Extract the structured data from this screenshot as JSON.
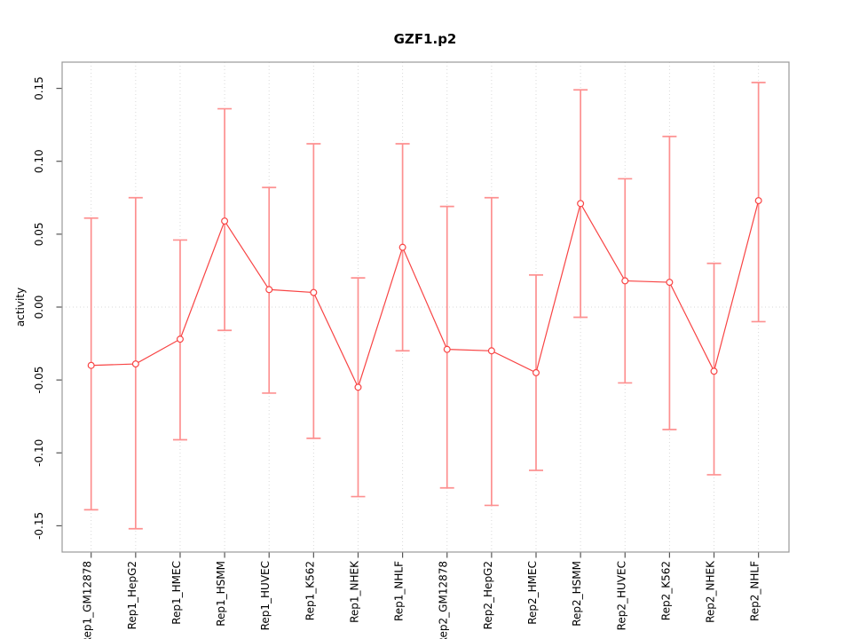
{
  "page": {
    "title": "GZF1.p2"
  },
  "chart_data": {
    "type": "line",
    "title": "GZF1.p2",
    "xlabel": "",
    "ylabel": "activity",
    "ylim": [
      -0.168,
      0.168
    ],
    "yticks": [
      0.15,
      0.1,
      0.05,
      0.0,
      -0.05,
      -0.1,
      -0.15
    ],
    "ytick_labels": [
      "0.15",
      "0.10",
      "0.05",
      "0.00",
      "-0.05",
      "-0.10",
      "-0.15"
    ],
    "categories": [
      "Rep1_GM12878",
      "Rep1_HepG2",
      "Rep1_HMEC",
      "Rep1_HSMM",
      "Rep1_HUVEC",
      "Rep1_K562",
      "Rep1_NHEK",
      "Rep1_NHLF",
      "Rep2_GM12878",
      "Rep2_HepG2",
      "Rep2_HMEC",
      "Rep2_HSMM",
      "Rep2_HUVEC",
      "Rep2_K562",
      "Rep2_NHEK",
      "Rep2_NHLF"
    ],
    "series": [
      {
        "name": "activity",
        "values": [
          -0.04,
          -0.039,
          -0.022,
          0.059,
          0.012,
          0.01,
          -0.055,
          0.041,
          -0.029,
          -0.03,
          -0.045,
          0.071,
          0.018,
          0.017,
          -0.044,
          0.073
        ],
        "error_upper": [
          0.061,
          0.075,
          0.046,
          0.136,
          0.082,
          0.112,
          0.02,
          0.112,
          0.069,
          0.075,
          0.022,
          0.149,
          0.088,
          0.117,
          0.03,
          0.154
        ],
        "error_lower": [
          -0.139,
          -0.152,
          -0.091,
          -0.016,
          -0.059,
          -0.09,
          -0.13,
          -0.03,
          -0.124,
          -0.136,
          -0.112,
          -0.007,
          -0.052,
          -0.084,
          -0.115,
          -0.01
        ]
      }
    ],
    "legend": "none",
    "grid": "vertical dotted gridline at each category; horizontal dotted line at y=0",
    "marker": "open-circle",
    "colors": {
      "line": "#f84444",
      "marker": "#f84444",
      "error_bar": "#fd9090",
      "gridline": "#d9d9d9",
      "zero_line": "#d9d9d9",
      "box": "#999999",
      "tick": "#555555",
      "text": "#000000",
      "background": "#ffffff"
    }
  }
}
